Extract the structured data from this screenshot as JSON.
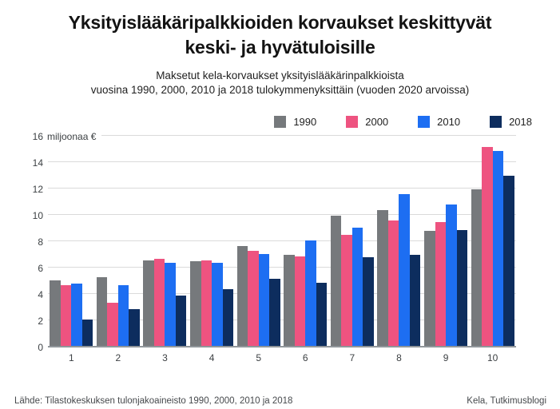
{
  "title": {
    "line1": "Yksityislääkäripalkkioiden korvaukset keskittyvät",
    "line2": "keski- ja hyvätuloisille"
  },
  "subtitle": {
    "line1": "Maksetut kela-korvaukset yksityislääkärinpalkkioista",
    "line2": "vuosina 1990, 2000, 2010 ja 2018 tulokymmenyksittäin (vuoden 2020 arvoissa)"
  },
  "footer": {
    "source": "Lähde: Tilastokeskuksen tulonjakoaineisto 1990, 2000, 2010 ja 2018",
    "credit": "Kela, Tutkimusblogi"
  },
  "colors": {
    "series_1990": "#76797c",
    "series_2000": "#ee5380",
    "series_2010": "#1d6ef2",
    "series_2018": "#0d2d5e",
    "gridline": "#dadada",
    "baseline": "#90969a"
  },
  "chart_data": {
    "type": "bar",
    "title": "Maksetut kela-korvaukset yksityislääkärinpalkkioista vuosina 1990, 2000, 2010 ja 2018 tulokymmenyksittäin (vuoden 2020 arvoissa)",
    "xlabel": "",
    "ylabel": "miljoonaa €",
    "categories": [
      "1",
      "2",
      "3",
      "4",
      "5",
      "6",
      "7",
      "8",
      "9",
      "10"
    ],
    "series": [
      {
        "name": "1990",
        "color": "#76797c",
        "values": [
          5.0,
          5.2,
          6.5,
          6.4,
          7.6,
          6.9,
          9.9,
          10.3,
          8.7,
          11.9
        ]
      },
      {
        "name": "2000",
        "color": "#ee5380",
        "values": [
          4.6,
          3.3,
          6.6,
          6.5,
          7.2,
          6.8,
          8.4,
          9.5,
          9.4,
          15.1
        ]
      },
      {
        "name": "2010",
        "color": "#1d6ef2",
        "values": [
          4.7,
          4.6,
          6.3,
          6.3,
          7.0,
          8.0,
          9.0,
          11.5,
          10.7,
          14.8
        ]
      },
      {
        "name": "2018",
        "color": "#0d2d5e",
        "values": [
          2.0,
          2.8,
          3.8,
          4.3,
          5.1,
          4.8,
          6.7,
          6.9,
          8.8,
          12.9
        ]
      }
    ],
    "ylim": [
      0,
      16
    ],
    "ytick_step": 2,
    "y_top_label_suffix": "miljoonaa €",
    "grid": true,
    "legend_position": "top-right"
  }
}
